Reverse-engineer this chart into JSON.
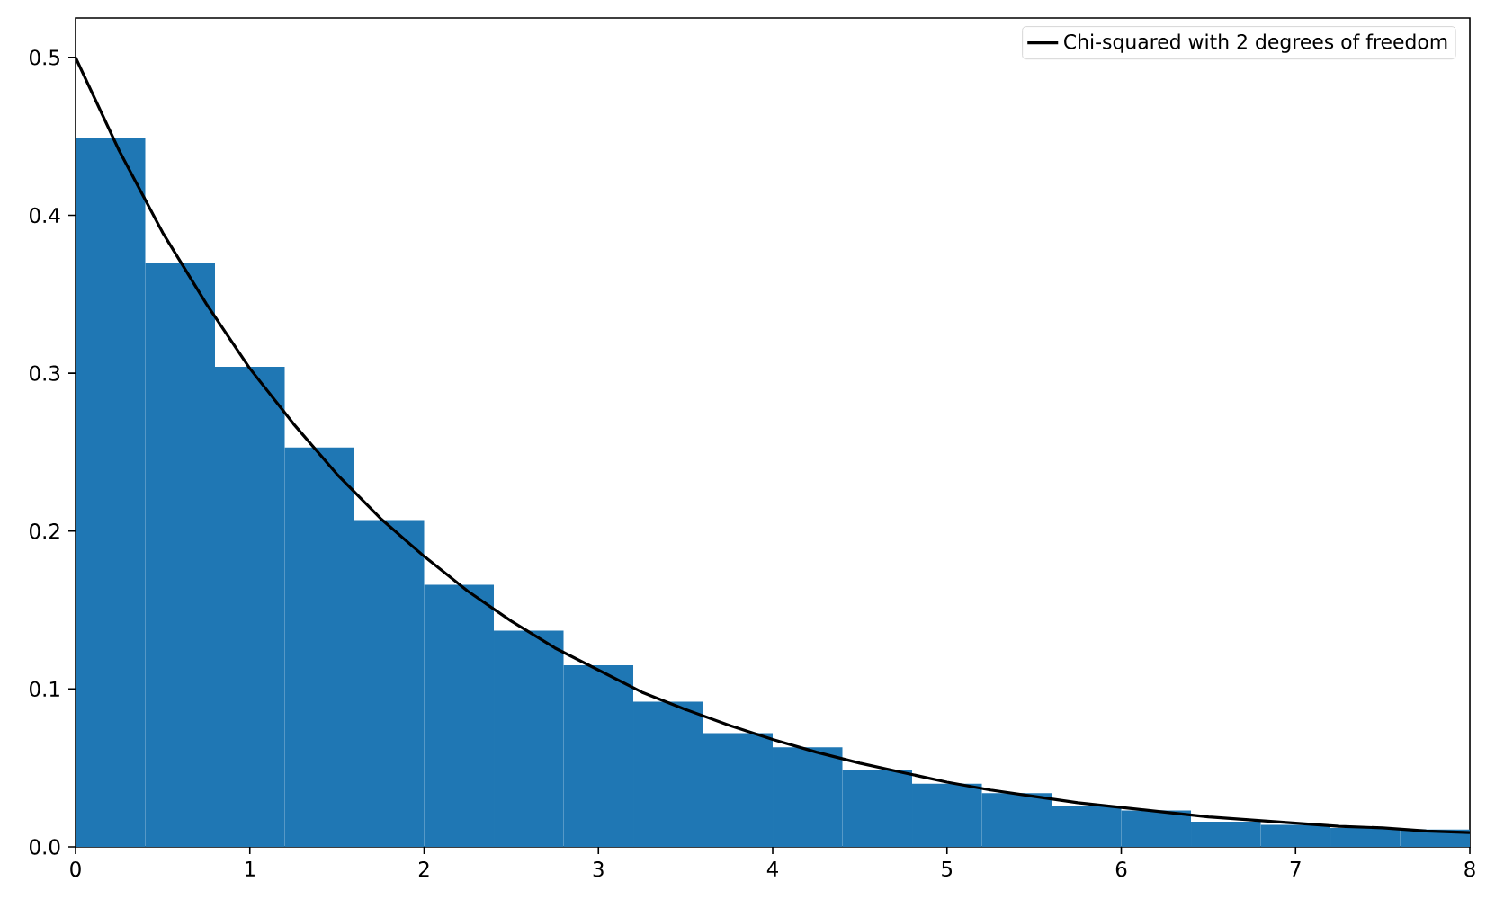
{
  "chart_data": {
    "type": "histogram",
    "bins": [
      0,
      0.4,
      0.8,
      1.2,
      1.6,
      2.0,
      2.4,
      2.8,
      3.2,
      3.6,
      4.0,
      4.4,
      4.8,
      5.2,
      5.6,
      6.0,
      6.4,
      6.8,
      7.2,
      7.6,
      8.0
    ],
    "values": [
      0.449,
      0.37,
      0.304,
      0.253,
      0.207,
      0.166,
      0.137,
      0.115,
      0.092,
      0.072,
      0.063,
      0.049,
      0.04,
      0.034,
      0.026,
      0.023,
      0.016,
      0.014,
      0.012,
      0.011
    ],
    "color": "#1f77b4",
    "series": [
      {
        "type": "line",
        "name": "Chi-squared with 2 degrees of freedom",
        "color": "#000000",
        "x": [
          0,
          0.25,
          0.5,
          0.75,
          1,
          1.25,
          1.5,
          1.75,
          2,
          2.25,
          2.5,
          2.75,
          3,
          3.25,
          3.5,
          3.75,
          4,
          4.25,
          4.5,
          4.75,
          5,
          5.25,
          5.5,
          5.75,
          6,
          6.25,
          6.5,
          6.75,
          7,
          7.25,
          7.5,
          7.75,
          8
        ],
        "values": [
          0.5,
          0.441,
          0.389,
          0.344,
          0.303,
          0.268,
          0.236,
          0.208,
          0.184,
          0.162,
          0.143,
          0.126,
          0.112,
          0.098,
          0.087,
          0.077,
          0.068,
          0.06,
          0.053,
          0.047,
          0.041,
          0.036,
          0.032,
          0.028,
          0.025,
          0.022,
          0.019,
          0.017,
          0.015,
          0.013,
          0.012,
          0.01,
          0.009
        ]
      }
    ],
    "xlim": [
      0,
      8
    ],
    "ylim": [
      0,
      0.525
    ],
    "xticks": [
      0,
      1,
      2,
      3,
      4,
      5,
      6,
      7,
      8
    ],
    "yticks": [
      {
        "value": 0,
        "label": "0.0"
      },
      {
        "value": 0.1,
        "label": "0.1"
      },
      {
        "value": 0.2,
        "label": "0.2"
      },
      {
        "value": 0.3,
        "label": "0.3"
      },
      {
        "value": 0.4,
        "label": "0.4"
      },
      {
        "value": 0.5,
        "label": "0.5"
      }
    ],
    "grid": false,
    "legend": "top right"
  }
}
